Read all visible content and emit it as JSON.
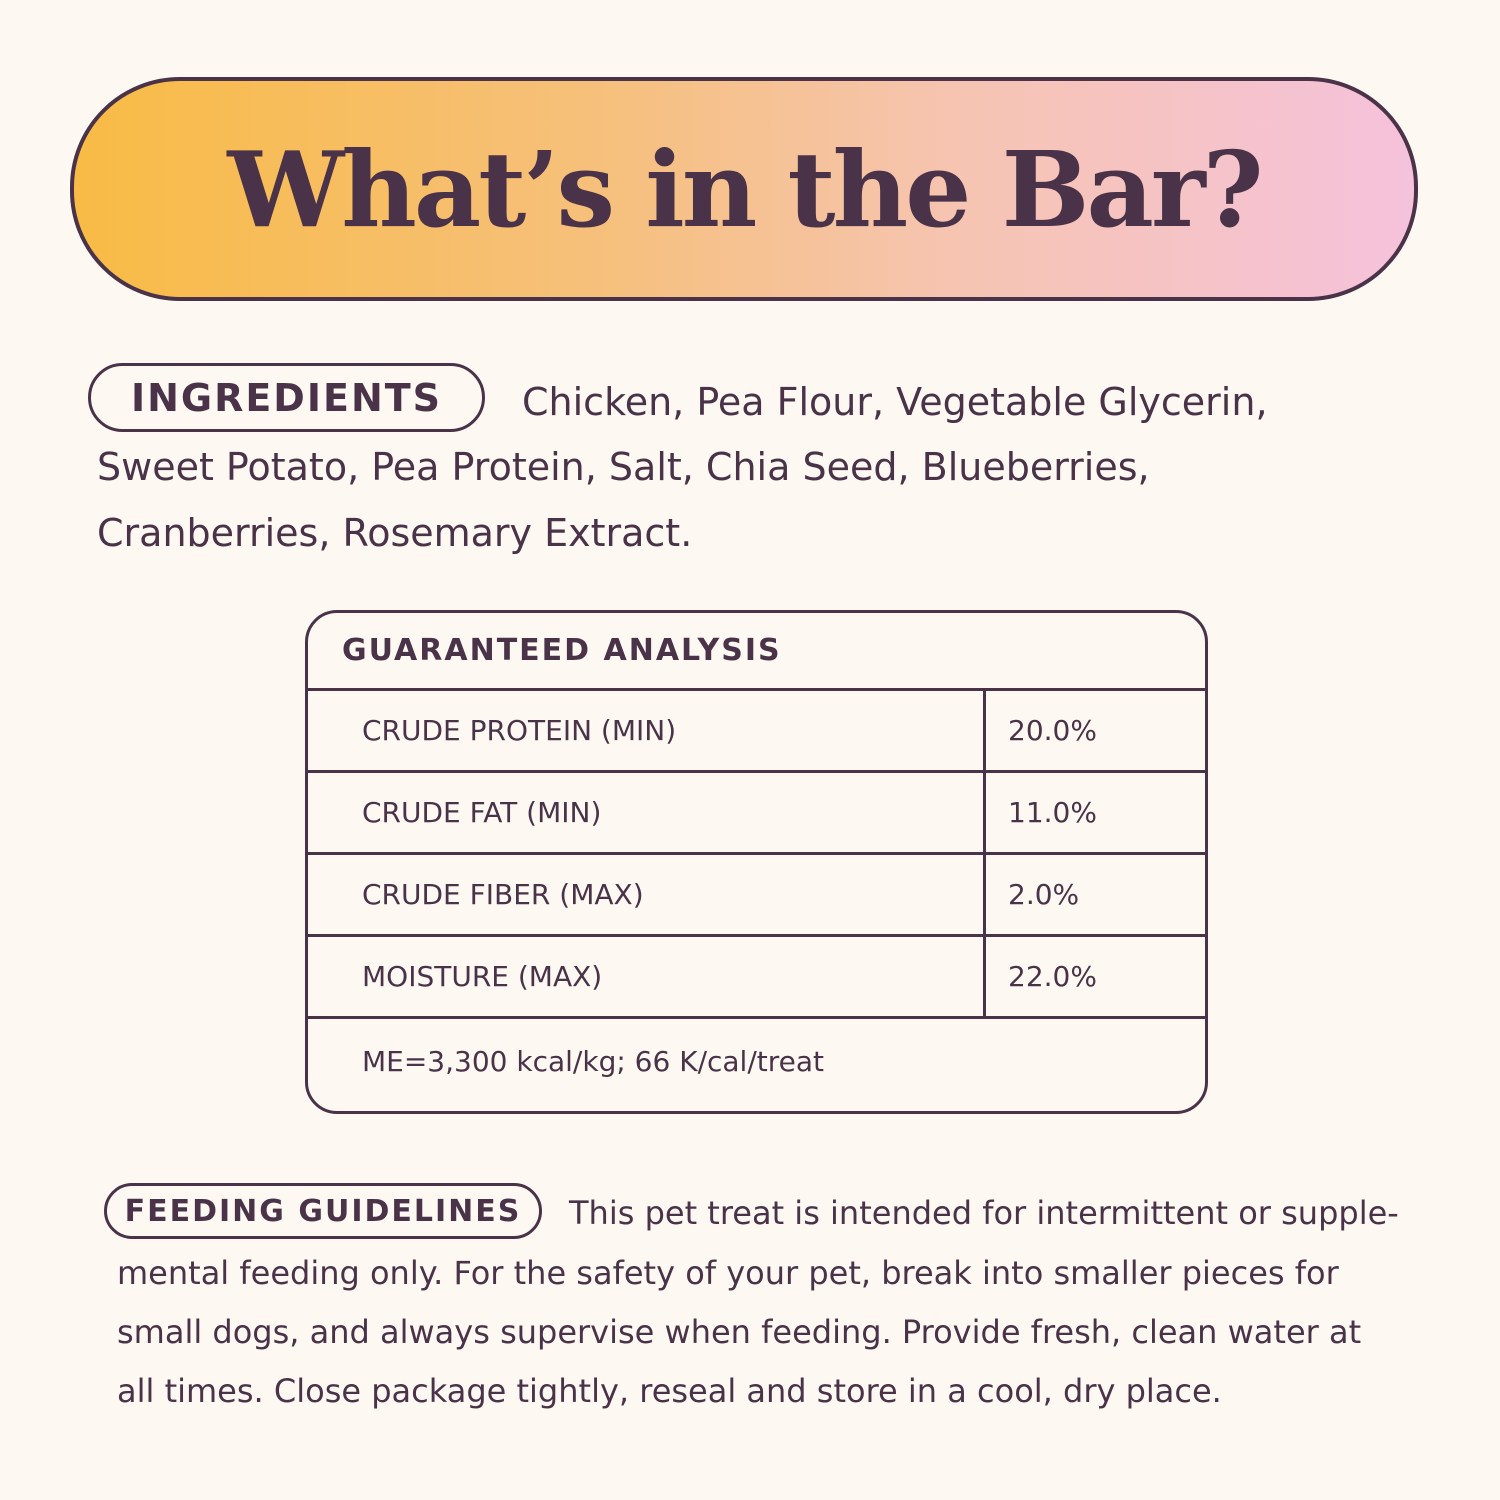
{
  "title": "What’s in the Bar?",
  "colors": {
    "ink": "#4a3348",
    "background": "#fdf8f2",
    "gradient_start": "#f8bb45",
    "gradient_end": "#f5c2dc"
  },
  "ingredients": {
    "label": "INGREDIENTS",
    "lines": [
      "Chicken, Pea Flour, Vegetable Glycerin,",
      "Sweet Potato, Pea Protein, Salt, Chia Seed, Blueberries,",
      "Cranberries, Rosemary Extract."
    ]
  },
  "analysis": {
    "header": "GUARANTEED ANALYSIS",
    "rows": [
      {
        "name": "CRUDE PROTEIN (MIN)",
        "value": "20.0%"
      },
      {
        "name": "CRUDE FAT (MIN)",
        "value": "11.0%"
      },
      {
        "name": "CRUDE FIBER (MAX)",
        "value": "2.0%"
      },
      {
        "name": "MOISTURE (MAX)",
        "value": "22.0%"
      }
    ],
    "footer": "ME=3,300 kcal/kg; 66 K/cal/treat"
  },
  "feeding": {
    "label": "FEEDING GUIDELINES",
    "lines": [
      "This pet treat is intended for intermittent or supple-",
      "mental feeding only. For the safety of your pet, break into smaller pieces for",
      "small dogs, and always supervise when feeding. Provide fresh, clean water at",
      "all times. Close package tightly, reseal and store in a cool, dry place."
    ]
  }
}
